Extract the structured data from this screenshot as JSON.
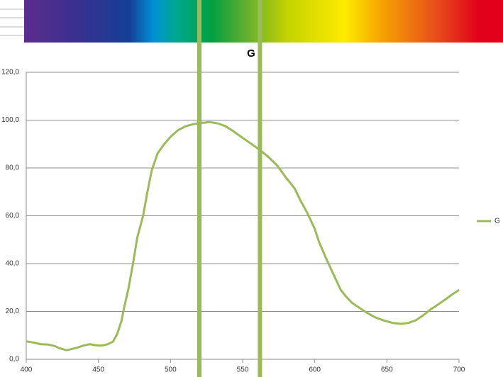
{
  "chart_data": {
    "type": "line",
    "annotation": "G",
    "x": [
      400,
      405,
      410,
      415,
      420,
      423,
      428,
      435,
      440,
      444,
      448,
      452,
      456,
      460,
      463,
      466,
      468,
      471,
      474,
      477,
      481,
      484,
      487,
      491,
      495,
      500,
      505,
      510,
      515,
      520,
      527,
      533,
      538,
      543,
      549,
      555,
      562,
      568,
      574,
      580,
      586,
      590,
      595,
      600,
      603,
      608,
      613,
      618,
      622,
      626,
      631,
      636,
      642,
      648,
      654,
      660,
      665,
      670,
      675,
      680,
      685,
      690,
      695,
      700
    ],
    "series": [
      {
        "name": "G",
        "color": "#9bbb59",
        "values": [
          7.5,
          7,
          6.3,
          6.2,
          5.5,
          4.6,
          3.8,
          4.8,
          5.8,
          6.3,
          5.9,
          5.7,
          6.2,
          7.3,
          10.5,
          16,
          22,
          30,
          40,
          51,
          60,
          70,
          79,
          86,
          89.5,
          93,
          95.7,
          97.3,
          98.2,
          98.7,
          99.2,
          98.6,
          97.5,
          95.6,
          93,
          90.5,
          87.5,
          84.5,
          81,
          76,
          71.5,
          66.5,
          61,
          54.5,
          49,
          42,
          35.5,
          29,
          26,
          23.5,
          21.5,
          19.5,
          17.5,
          16.2,
          15.2,
          14.8,
          15.2,
          16.3,
          18.3,
          20.7,
          22.7,
          24.8,
          27,
          29
        ]
      }
    ],
    "vlines": {
      "values": [
        520,
        562
      ],
      "color": "#9bbb59"
    },
    "xlim": [
      400,
      700
    ],
    "xticks": [
      400,
      450,
      500,
      550,
      600,
      650,
      700
    ],
    "ylim": [
      0,
      120
    ],
    "yticks": [
      {
        "value": 0,
        "label": "0,0"
      },
      {
        "value": 20,
        "label": "20,0"
      },
      {
        "value": 40,
        "label": "40,0"
      },
      {
        "value": 60,
        "label": "60,0"
      },
      {
        "value": 80,
        "label": "80,0"
      },
      {
        "value": 100,
        "label": "100,0"
      },
      {
        "value": 120,
        "label": "120,0"
      }
    ],
    "grid": true,
    "legend": "right"
  }
}
